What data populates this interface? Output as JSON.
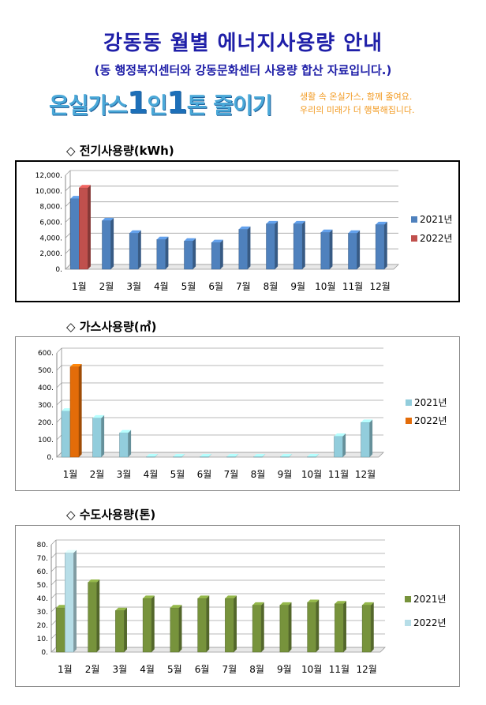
{
  "page": {
    "title": "강동동 월별 에너지사용량 안내",
    "subtitle": "(동 행정복지센터와 강동문화센터 사용량 합산 자료입니다.)",
    "banner": {
      "main_a": "온실가스",
      "main_b": "1",
      "main_c": "인",
      "main_d": "1",
      "main_e": "톤 줄이기",
      "side_line1": "생활 속 온실가스, 함께 줄여요.",
      "side_line2": "우리의 미래가 더 행복해집니다."
    }
  },
  "chart_data": [
    {
      "id": "electricity",
      "section_title": "◇ 전기사용량(kWh)",
      "type": "bar",
      "categories": [
        "1월",
        "2월",
        "3월",
        "4월",
        "5월",
        "6월",
        "7월",
        "8월",
        "9월",
        "10월",
        "11월",
        "12월"
      ],
      "ylim": [
        0,
        12000
      ],
      "yticks": [
        0,
        2000,
        4000,
        6000,
        8000,
        10000,
        12000
      ],
      "ytick_labels": [
        "0.",
        "2,000.",
        "4,000.",
        "6,000.",
        "8,000.",
        "10,000.",
        "12,000."
      ],
      "legend_position": "right",
      "series": [
        {
          "name": "2021년",
          "color": "#4f81bd",
          "values": [
            9000,
            6200,
            4600,
            3800,
            3600,
            3400,
            5100,
            5800,
            5800,
            4700,
            4600,
            5700
          ]
        },
        {
          "name": "2022년",
          "color": "#c0504d",
          "values": [
            10400,
            null,
            null,
            null,
            null,
            null,
            null,
            null,
            null,
            null,
            null,
            null
          ]
        }
      ]
    },
    {
      "id": "gas",
      "section_title": "◇ 가스사용량(㎥)",
      "type": "bar",
      "categories": [
        "1월",
        "2월",
        "3월",
        "4월",
        "5월",
        "6월",
        "7월",
        "8월",
        "9월",
        "10월",
        "11월",
        "12월"
      ],
      "ylim": [
        0,
        600
      ],
      "yticks": [
        0,
        100,
        200,
        300,
        400,
        500,
        600
      ],
      "ytick_labels": [
        "0.",
        "100.",
        "200.",
        "300.",
        "400.",
        "500.",
        "600."
      ],
      "legend_position": "right",
      "series": [
        {
          "name": "2021년",
          "color": "#92cddc",
          "values": [
            265,
            225,
            140,
            2,
            2,
            2,
            2,
            2,
            2,
            2,
            120,
            200
          ]
        },
        {
          "name": "2022년",
          "color": "#e36c09",
          "values": [
            520,
            null,
            null,
            null,
            null,
            null,
            null,
            null,
            null,
            null,
            null,
            null
          ]
        }
      ]
    },
    {
      "id": "water",
      "section_title": "◇ 수도사용량(톤)",
      "type": "bar",
      "categories": [
        "1월",
        "2월",
        "3월",
        "4월",
        "5월",
        "6월",
        "7월",
        "8월",
        "9월",
        "10월",
        "11월",
        "12월"
      ],
      "ylim": [
        0,
        80
      ],
      "yticks": [
        0,
        10,
        20,
        30,
        40,
        50,
        60,
        70,
        80
      ],
      "ytick_labels": [
        "0.",
        "10.",
        "20.",
        "30.",
        "40.",
        "50.",
        "60.",
        "70.",
        "80."
      ],
      "legend_position": "right",
      "series": [
        {
          "name": "2021년",
          "color": "#77933c",
          "values": [
            33,
            52,
            31,
            40,
            33,
            40,
            40,
            35,
            35,
            37,
            36,
            35
          ]
        },
        {
          "name": "2022년",
          "color": "#b7dee8",
          "values": [
            74,
            null,
            null,
            null,
            null,
            null,
            null,
            null,
            null,
            null,
            null,
            null
          ]
        }
      ]
    }
  ]
}
